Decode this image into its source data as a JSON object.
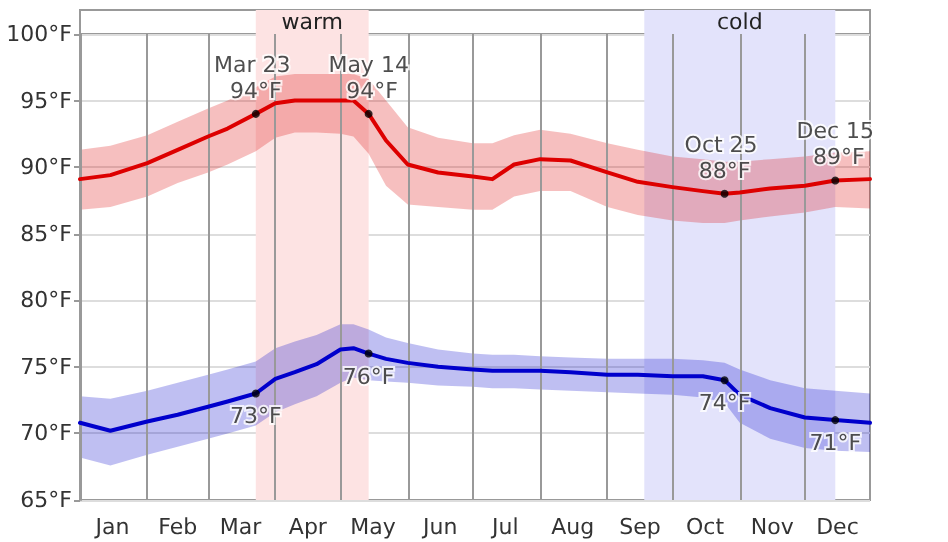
{
  "chart_data": {
    "type": "line",
    "x": [
      "--01-01",
      "--01-15",
      "--02-01",
      "--02-15",
      "--03-01",
      "--03-10",
      "--03-23",
      "--04-01",
      "--04-10",
      "--04-20",
      "--05-01",
      "--05-07",
      "--05-14",
      "--05-22",
      "--06-01",
      "--06-15",
      "--07-01",
      "--07-10",
      "--07-20",
      "--08-01",
      "--08-15",
      "--09-01",
      "--09-15",
      "--10-01",
      "--10-15",
      "--10-25",
      "--11-01",
      "--11-15",
      "--12-01",
      "--12-15",
      "--12-31"
    ],
    "series": [
      {
        "color": "#dd0000",
        "values": [
          89.1,
          89.4,
          90.3,
          91.3,
          92.3,
          92.9,
          94,
          94.8,
          95.0,
          95.0,
          95.0,
          95.0,
          94,
          92.0,
          90.2,
          89.6,
          89.3,
          89.1,
          90.2,
          90.6,
          90.5,
          89.6,
          88.9,
          88.5,
          88.2,
          88,
          88.1,
          88.4,
          88.6,
          89,
          89.1
        ],
        "upper": [
          91.3,
          91.6,
          92.4,
          93.4,
          94.4,
          95.0,
          96.0,
          96.8,
          97.0,
          97.0,
          97.0,
          97.0,
          96.6,
          95.0,
          93.0,
          92.2,
          91.8,
          91.8,
          92.4,
          92.8,
          92.5,
          91.8,
          91.3,
          90.8,
          90.6,
          90.4,
          90.4,
          90.6,
          90.8,
          91.1,
          91.2
        ],
        "lower": [
          86.8,
          87.0,
          87.8,
          88.8,
          89.6,
          90.2,
          91.2,
          92.2,
          92.6,
          92.6,
          92.5,
          92.3,
          91.0,
          88.6,
          87.2,
          87.0,
          86.8,
          86.8,
          87.8,
          88.2,
          88.2,
          87.0,
          86.4,
          86.0,
          85.8,
          85.8,
          86.0,
          86.3,
          86.6,
          87.0,
          86.9
        ]
      },
      {
        "color": "#0000cc",
        "values": [
          70.8,
          70.2,
          70.9,
          71.4,
          72.0,
          72.4,
          73,
          74.1,
          74.6,
          75.2,
          76.3,
          76.4,
          76,
          75.6,
          75.3,
          75.0,
          74.8,
          74.7,
          74.7,
          74.7,
          74.6,
          74.4,
          74.4,
          74.3,
          74.3,
          74,
          72.9,
          71.9,
          71.2,
          71,
          70.8
        ],
        "upper": [
          72.8,
          72.6,
          73.2,
          73.8,
          74.4,
          74.8,
          75.4,
          76.4,
          76.9,
          77.4,
          78.2,
          78.2,
          77.8,
          77.2,
          76.8,
          76.3,
          76.0,
          75.9,
          75.9,
          75.8,
          75.7,
          75.6,
          75.6,
          75.6,
          75.5,
          75.3,
          74.8,
          74.0,
          73.4,
          73.2,
          73.0
        ],
        "lower": [
          68.2,
          67.6,
          68.4,
          69.0,
          69.6,
          70.0,
          70.6,
          71.6,
          72.2,
          72.8,
          73.8,
          74.2,
          74.0,
          73.9,
          73.8,
          73.6,
          73.5,
          73.4,
          73.4,
          73.3,
          73.2,
          73.1,
          73.0,
          72.9,
          72.7,
          72.3,
          70.8,
          69.6,
          68.9,
          68.7,
          68.6
        ]
      }
    ],
    "xlim": [
      "--01-01",
      "--12-31"
    ],
    "xticks": [
      {
        "value": "--01-01",
        "label": null
      },
      {
        "value": "--01-16",
        "label": "Jan"
      },
      {
        "value": "--02-01",
        "label": null
      },
      {
        "value": "--02-15",
        "label": "Feb"
      },
      {
        "value": "--03-01",
        "label": null
      },
      {
        "value": "--03-16",
        "label": "Mar"
      },
      {
        "value": "--04-01",
        "label": null
      },
      {
        "value": "--04-16",
        "label": "Apr"
      },
      {
        "value": "--05-01",
        "label": null
      },
      {
        "value": "--05-16",
        "label": "May"
      },
      {
        "value": "--06-01",
        "label": null
      },
      {
        "value": "--06-16",
        "label": "Jun"
      },
      {
        "value": "--07-01",
        "label": null
      },
      {
        "value": "--07-16",
        "label": "Jul"
      },
      {
        "value": "--08-01",
        "label": null
      },
      {
        "value": "--08-16",
        "label": "Aug"
      },
      {
        "value": "--09-01",
        "label": null
      },
      {
        "value": "--09-16",
        "label": "Sep"
      },
      {
        "value": "--10-01",
        "label": null
      },
      {
        "value": "--10-16",
        "label": "Oct"
      },
      {
        "value": "--11-01",
        "label": null
      },
      {
        "value": "--11-16",
        "label": "Nov"
      },
      {
        "value": "--12-01",
        "label": null
      },
      {
        "value": "--12-16",
        "label": "Dec"
      }
    ],
    "ylim": [
      65,
      100
    ],
    "yticks": [
      {
        "value": 65,
        "label": "65°F"
      },
      {
        "value": 70,
        "label": "70°F"
      },
      {
        "value": 75,
        "label": "75°F"
      },
      {
        "value": 80,
        "label": "80°F"
      },
      {
        "value": 85,
        "label": "85°F"
      },
      {
        "value": 90,
        "label": "90°F"
      },
      {
        "value": 95,
        "label": "95°F"
      },
      {
        "value": 100,
        "label": "100°F"
      }
    ],
    "bands": [
      {
        "axis": "x",
        "from": "--03-23",
        "to": "--05-14",
        "label": "warm",
        "color": "#fde3e3"
      },
      {
        "axis": "x",
        "from": "--09-18",
        "to": "--12-15",
        "label": "cold",
        "color": "#e3e3fb"
      }
    ],
    "annotations": [
      {
        "text": "Mar 23 94°F",
        "x": "--03-23",
        "y": 94
      },
      {
        "text": "May 14 94°F",
        "x": "--05-14",
        "y": 94
      },
      {
        "text": "Oct 25 88°F",
        "x": "--10-25",
        "y": 88
      },
      {
        "text": "Dec 15 89°F",
        "x": "--12-15",
        "y": 89
      },
      {
        "text": "73°F",
        "x": "--03-23",
        "y": 73
      },
      {
        "text": "76°F",
        "x": "--05-14",
        "y": 76
      },
      {
        "text": "74°F",
        "x": "--10-25",
        "y": 74
      },
      {
        "text": "71°F",
        "x": "--12-15",
        "y": 71
      }
    ],
    "grid": true,
    "marker": "none",
    "line_style": "solid"
  }
}
